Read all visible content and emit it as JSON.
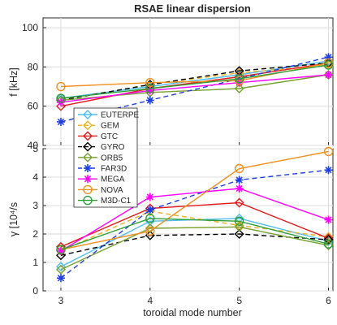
{
  "chart_data": [
    {
      "type": "line",
      "title": "RSAE linear dispersion",
      "xlabel": "",
      "ylabel": "f [kHz]",
      "x": [
        3,
        4,
        5,
        6
      ],
      "xlim": [
        2.8,
        6.05
      ],
      "ylim": [
        40,
        105
      ],
      "xticks": [
        "3",
        "4",
        "5",
        "6"
      ],
      "yticks": [
        "40",
        "60",
        "80",
        "100"
      ],
      "grid": true,
      "series": [
        {
          "name": "EUTERPE",
          "color": "#4dbeee",
          "marker": "diamond",
          "dashed": false,
          "values": [
            64,
            70,
            76,
            83
          ]
        },
        {
          "name": "GEM",
          "color": "#edb120",
          "marker": "diamond",
          "dashed": true,
          "values": [
            63,
            71,
            77,
            81
          ]
        },
        {
          "name": "GTC",
          "color": "#e41a1c",
          "marker": "diamond",
          "dashed": false,
          "values": [
            60,
            69,
            75,
            82
          ]
        },
        {
          "name": "GYRO",
          "color": "#000000",
          "marker": "diamond",
          "dashed": true,
          "values": [
            63,
            71,
            78,
            82
          ]
        },
        {
          "name": "ORB5",
          "color": "#77a02f",
          "marker": "diamond",
          "dashed": false,
          "values": [
            63,
            67,
            69,
            76
          ]
        },
        {
          "name": "FAR3D",
          "color": "#1f3fe0",
          "marker": "asterisk",
          "dashed": true,
          "values": [
            52,
            63,
            74,
            85
          ]
        },
        {
          "name": "MEGA",
          "color": "#ff00ff",
          "marker": "asterisk",
          "dashed": false,
          "values": [
            62,
            68,
            72,
            76
          ]
        },
        {
          "name": "NOVA",
          "color": "#f28e1c",
          "marker": "circle",
          "dashed": false,
          "values": [
            70,
            72,
            73,
            82
          ]
        },
        {
          "name": "M3D-C1",
          "color": "#2e9e38",
          "marker": "circle",
          "dashed": false,
          "values": [
            64,
            69,
            74,
            81
          ]
        }
      ]
    },
    {
      "type": "line",
      "title": "",
      "xlabel": "toroidal mode number",
      "ylabel": "γ [10⁴/s",
      "x": [
        3,
        4,
        5,
        6
      ],
      "xlim": [
        2.8,
        6.05
      ],
      "ylim": [
        0,
        5
      ],
      "xticks": [
        "3",
        "4",
        "5",
        "6"
      ],
      "yticks": [
        "0",
        "1",
        "2",
        "3",
        "4",
        "5"
      ],
      "grid": true,
      "legend_position": "left",
      "series": [
        {
          "name": "EUTERPE",
          "color": "#4dbeee",
          "marker": "diamond",
          "dashed": false,
          "values": [
            0.85,
            2.45,
            2.55,
            1.75
          ]
        },
        {
          "name": "GEM",
          "color": "#edb120",
          "marker": "diamond",
          "dashed": true,
          "values": [
            1.4,
            2.8,
            2.3,
            1.9
          ]
        },
        {
          "name": "GTC",
          "color": "#e41a1c",
          "marker": "diamond",
          "dashed": false,
          "values": [
            1.55,
            2.9,
            3.1,
            1.85
          ]
        },
        {
          "name": "GYRO",
          "color": "#000000",
          "marker": "diamond",
          "dashed": true,
          "values": [
            1.25,
            1.95,
            2.0,
            1.8
          ]
        },
        {
          "name": "ORB5",
          "color": "#77a02f",
          "marker": "diamond",
          "dashed": false,
          "values": [
            0.75,
            2.2,
            2.25,
            1.6
          ]
        },
        {
          "name": "FAR3D",
          "color": "#1f3fe0",
          "marker": "asterisk",
          "dashed": true,
          "values": [
            0.45,
            2.85,
            3.9,
            4.25
          ]
        },
        {
          "name": "MEGA",
          "color": "#ff00ff",
          "marker": "asterisk",
          "dashed": false,
          "values": [
            1.4,
            3.3,
            3.6,
            2.5
          ]
        },
        {
          "name": "NOVA",
          "color": "#f28e1c",
          "marker": "circle",
          "dashed": false,
          "values": [
            1.45,
            2.1,
            4.3,
            4.9
          ]
        },
        {
          "name": "M3D-C1",
          "color": "#2e9e38",
          "marker": "circle",
          "dashed": false,
          "values": [
            1.45,
            2.55,
            2.45,
            1.65
          ]
        }
      ]
    }
  ]
}
